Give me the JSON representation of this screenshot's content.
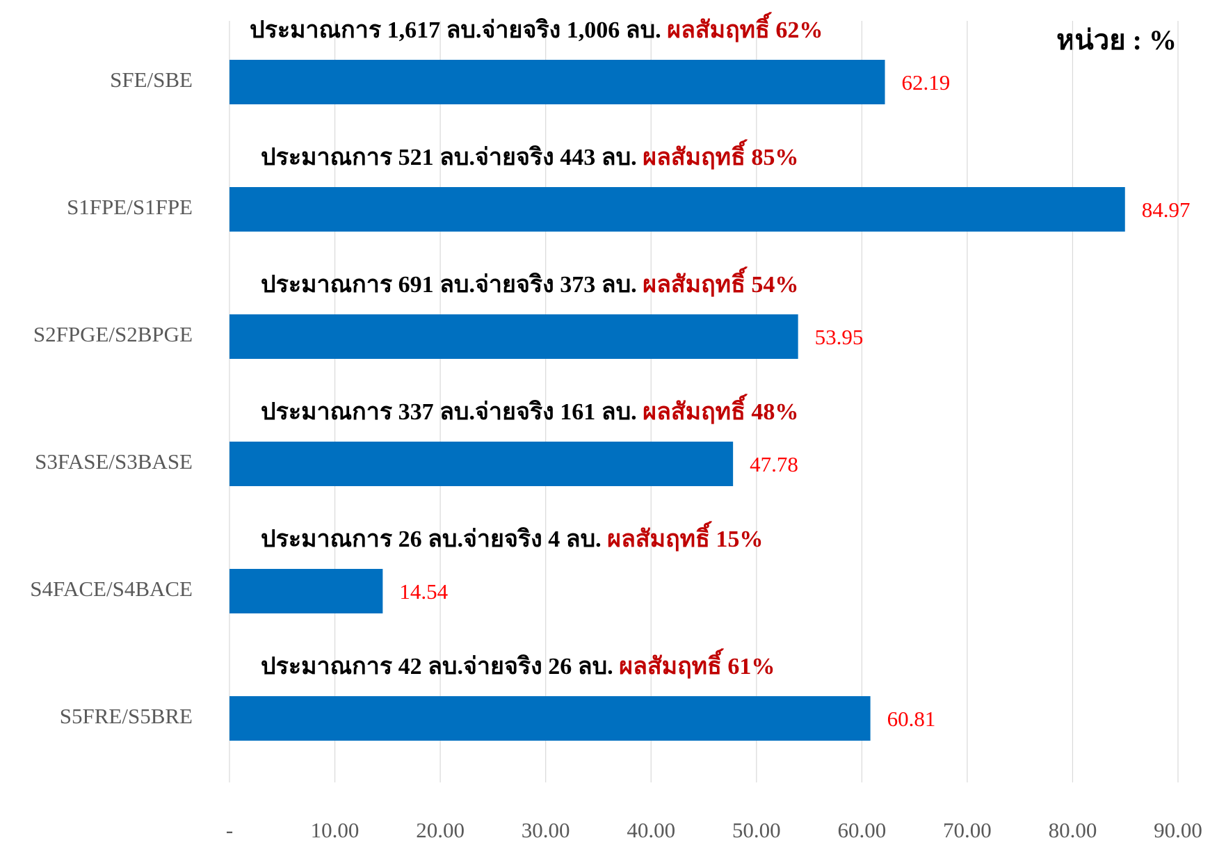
{
  "chart_data": {
    "type": "barh",
    "unit_label": "หน่วย : %",
    "categories": [
      "SFE/SBE",
      "S1FPE/S1FPE",
      "S2FPGE/S2BPGE",
      "S3FASE/S3BASE",
      "S4FACE/S4BACE",
      "S5FRE/S5BRE"
    ],
    "values": [
      62.19,
      84.97,
      53.95,
      47.78,
      14.54,
      60.81
    ],
    "color": "#0070c0",
    "label_color": "#ff0000",
    "annotations": [
      {
        "text": "ประมาณการ 1,617 ลบ.จ่ายจริง 1,006 ลบ.",
        "highlight": "ผลสัมฤทธิ์ 62%"
      },
      {
        "text": "ประมาณการ 521 ลบ.จ่ายจริง 443 ลบ.",
        "highlight": "ผลสัมฤทธิ์ 85%"
      },
      {
        "text": "ประมาณการ 691 ลบ.จ่ายจริง 373 ลบ.",
        "highlight": "ผลสัมฤทธิ์ 54%"
      },
      {
        "text": "ประมาณการ 337 ลบ.จ่ายจริง 161 ลบ.",
        "highlight": "ผลสัมฤทธิ์ 48%"
      },
      {
        "text": "ประมาณการ 26 ลบ.จ่ายจริง 4 ลบ.",
        "highlight": "ผลสัมฤทธิ์ 15%"
      },
      {
        "text": "ประมาณการ 42 ลบ.จ่ายจริง 26 ลบ.",
        "highlight": "ผลสัมฤทธิ์ 61%"
      }
    ],
    "xlim": [
      0,
      90
    ],
    "xticks": [
      {
        "value": 0,
        "label": "-"
      },
      {
        "value": 10,
        "label": "10.00"
      },
      {
        "value": 20,
        "label": "20.00"
      },
      {
        "value": 30,
        "label": "30.00"
      },
      {
        "value": 40,
        "label": "40.00"
      },
      {
        "value": 50,
        "label": "50.00"
      },
      {
        "value": 60,
        "label": "60.00"
      },
      {
        "value": 70,
        "label": "70.00"
      },
      {
        "value": 80,
        "label": "80.00"
      },
      {
        "value": 90,
        "label": "90.00"
      }
    ],
    "grid": true
  }
}
